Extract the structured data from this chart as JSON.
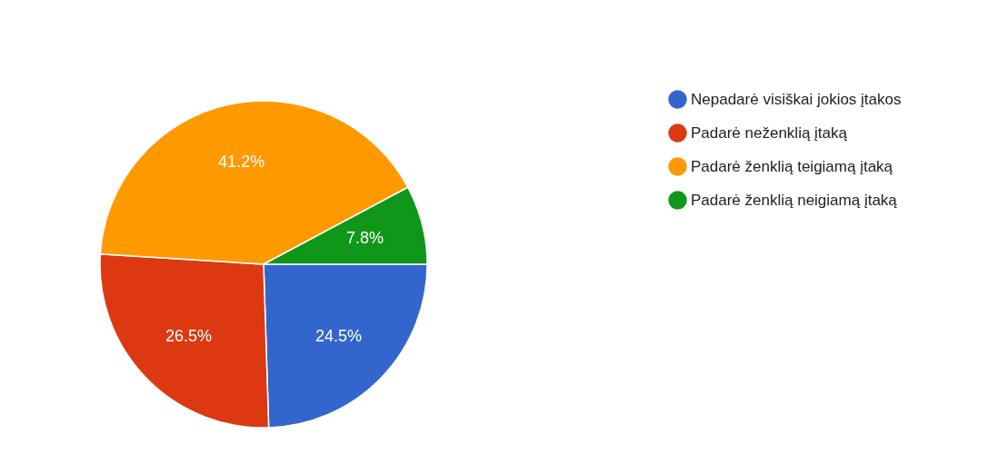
{
  "chart_data": {
    "type": "pie",
    "categories": [
      "Nepadarė visiškai jokios įtakos",
      "Padarė neženklią įtaką",
      "Padarė ženklią teigiamą įtaką",
      "Padarė ženklią neigiamą įtaką"
    ],
    "values": [
      24.5,
      26.5,
      41.2,
      7.8
    ],
    "colors": [
      "#3366cc",
      "#dc3912",
      "#ff9900",
      "#109618"
    ],
    "value_labels": [
      "24.5%",
      "26.5%",
      "41.2%",
      "7.8%"
    ],
    "legend": "right"
  }
}
